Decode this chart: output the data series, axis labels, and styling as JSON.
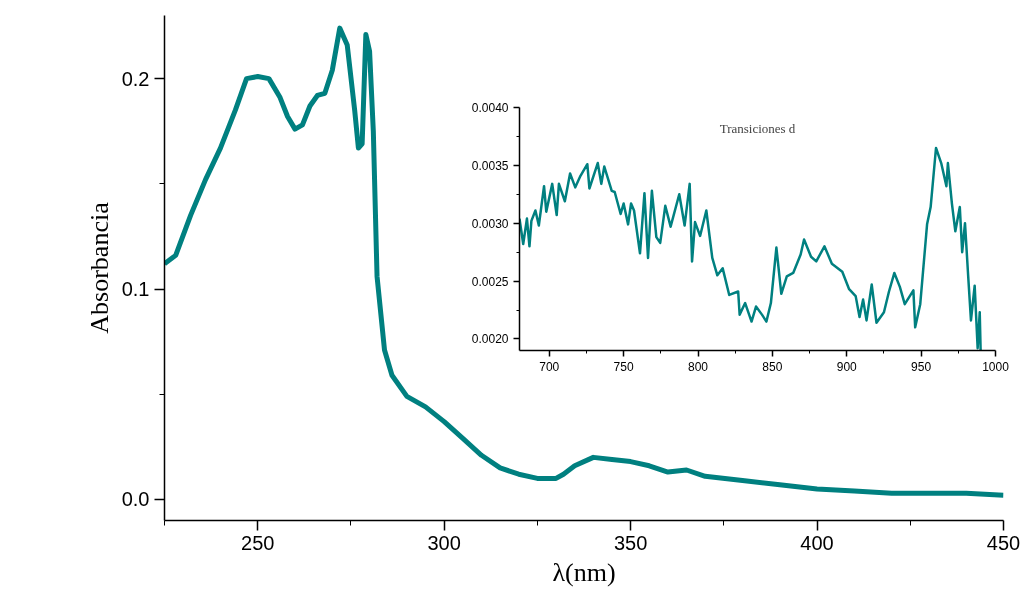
{
  "chart_data": [
    {
      "type": "line",
      "xlabel": "λ(nm)",
      "ylabel": "Absorbancia",
      "xlim": [
        225,
        450
      ],
      "ylim": [
        -0.01,
        0.23
      ],
      "xticks": [
        250,
        300,
        350,
        400,
        450
      ],
      "yticks": [
        {
          "value": 0,
          "label": "0.0"
        },
        {
          "value": 0.1,
          "label": "0.1"
        },
        {
          "value": 0.2,
          "label": "0.2"
        }
      ],
      "series": [
        {
          "color": "#008080",
          "x": [
            225,
            228,
            232,
            236,
            240,
            244,
            247,
            250,
            253,
            256,
            258,
            260,
            262,
            264,
            266,
            268,
            270,
            272,
            274,
            276,
            277,
            278,
            279,
            280,
            281,
            282,
            284,
            286,
            290,
            295,
            300,
            305,
            310,
            315,
            320,
            325,
            330,
            332,
            335,
            340,
            345,
            350,
            355,
            360,
            365,
            370,
            380,
            390,
            400,
            410,
            420,
            430,
            440,
            450
          ],
          "values": [
            0.112,
            0.116,
            0.135,
            0.152,
            0.167,
            0.185,
            0.2,
            0.201,
            0.2,
            0.191,
            0.182,
            0.176,
            0.178,
            0.187,
            0.192,
            0.193,
            0.204,
            0.224,
            0.216,
            0.185,
            0.167,
            0.169,
            0.221,
            0.213,
            0.175,
            0.106,
            0.071,
            0.059,
            0.049,
            0.044,
            0.037,
            0.029,
            0.021,
            0.015,
            0.012,
            0.01,
            0.01,
            0.012,
            0.016,
            0.02,
            0.019,
            0.018,
            0.016,
            0.013,
            0.014,
            0.011,
            0.009,
            0.007,
            0.005,
            0.004,
            0.003,
            0.003,
            0.003,
            0.002
          ]
        }
      ]
    },
    {
      "type": "line",
      "annotations": [
        "Transiciones d"
      ],
      "xlim": [
        680,
        1000
      ],
      "ylim": [
        0.0019,
        0.004
      ],
      "xticks": [
        700,
        750,
        800,
        850,
        900,
        950,
        1000
      ],
      "yticks": [
        {
          "value": 0.002,
          "label": "0.0020"
        },
        {
          "value": 0.0025,
          "label": "0.0025"
        },
        {
          "value": 0.003,
          "label": "0.0030"
        },
        {
          "value": 0.0035,
          "label": "0.0035"
        },
        {
          "value": 0.004,
          "label": "0.0040"
        }
      ],
      "series": [
        {
          "color": "#008080",
          "x": [
            680,
            682.5,
            685,
            686.7,
            688,
            690.7,
            693,
            696.5,
            698,
            702,
            705,
            706.5,
            710.5,
            714,
            717.5,
            721,
            725.6,
            727,
            732.6,
            735,
            737,
            742,
            744,
            748,
            750,
            753,
            755,
            757,
            761,
            764,
            766.4,
            769,
            772,
            774.6,
            778,
            781.6,
            787.4,
            791,
            794.4,
            796,
            798,
            801.4,
            805.6,
            809.6,
            813,
            816.6,
            821,
            827,
            828,
            831.7,
            836,
            839,
            843,
            846,
            849,
            852.7,
            856,
            859.7,
            864,
            869,
            871.3,
            876,
            879.5,
            885,
            890,
            897,
            901.6,
            906,
            908.6,
            911,
            913.3,
            916.8,
            920,
            925,
            928.4,
            932,
            935.7,
            939,
            944.8,
            946,
            949.4,
            954,
            956.4,
            960,
            963.5,
            967,
            968,
            970.7,
            973,
            976,
            977.6,
            979.5,
            981.6,
            983.5,
            986,
            988,
            989.4,
            990
          ],
          "values": [
            0.00304,
            0.00282,
            0.00304,
            0.0028,
            0.00302,
            0.00311,
            0.00298,
            0.00332,
            0.0031,
            0.00334,
            0.00307,
            0.00334,
            0.00319,
            0.00343,
            0.00331,
            0.00341,
            0.00351,
            0.0033,
            0.00352,
            0.00334,
            0.00349,
            0.00328,
            0.00327,
            0.00308,
            0.00317,
            0.00299,
            0.00317,
            0.00311,
            0.00274,
            0.00326,
            0.0027,
            0.00328,
            0.00288,
            0.00283,
            0.00315,
            0.00297,
            0.00325,
            0.00298,
            0.00334,
            0.00267,
            0.00301,
            0.00289,
            0.00311,
            0.0027,
            0.00255,
            0.00261,
            0.00238,
            0.00241,
            0.00221,
            0.00231,
            0.00215,
            0.00228,
            0.00221,
            0.00215,
            0.00231,
            0.00279,
            0.00239,
            0.00254,
            0.00257,
            0.00273,
            0.00286,
            0.00271,
            0.00267,
            0.0028,
            0.00265,
            0.00258,
            0.00243,
            0.00237,
            0.00219,
            0.00234,
            0.00216,
            0.00247,
            0.00214,
            0.00223,
            0.00241,
            0.00257,
            0.00245,
            0.0023,
            0.00242,
            0.0021,
            0.0023,
            0.00299,
            0.00314,
            0.00365,
            0.00352,
            0.00332,
            0.00352,
            0.00317,
            0.00293,
            0.00314,
            0.00275,
            0.003,
            0.00255,
            0.00216,
            0.00246,
            0.00192,
            0.00223,
            0.0019
          ]
        }
      ]
    }
  ]
}
